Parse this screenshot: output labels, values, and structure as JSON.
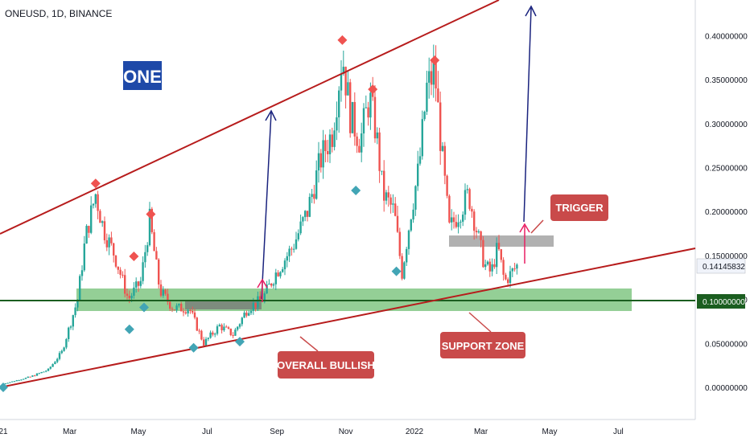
{
  "header": {
    "symbol_line": "ONEUSD, 1D, BINANCE"
  },
  "logo": {
    "text": "ONE",
    "bg": "#1e49a8",
    "fg": "#ffffff"
  },
  "colors": {
    "up": "#26a69a",
    "down": "#ef5350",
    "trendline": "#b71c1c",
    "support_zone": "#81c784",
    "support_line": "#1b5e20",
    "arrow_blue": "#1a237e",
    "arrow_pink": "#e91e63",
    "label_bg": "#c94a4a",
    "trigger_zone": "#9e9e9e",
    "marker_top": "#ef5350",
    "marker_bottom": "#42a5b5"
  },
  "chart_data": {
    "type": "candlestick",
    "symbol": "ONEUSD",
    "timeframe": "1D",
    "exchange": "BINANCE",
    "x_ticks": [
      "21",
      "Mar",
      "May",
      "Jul",
      "Sep",
      "Nov",
      "2022",
      "Mar",
      "May",
      "Jul"
    ],
    "y_ticks": [
      "0.40000000",
      "0.35000000",
      "0.30000000",
      "0.25000000",
      "0.20000000",
      "0.15000000",
      "0.10000000",
      "0.05000000",
      "0.00000000"
    ],
    "ylim": [
      -0.03,
      0.43
    ],
    "current_price": "0.14145832",
    "support_level": "0.10000000",
    "price_path": [
      [
        "2021-01-01",
        0.004
      ],
      [
        "2021-01-25",
        0.012
      ],
      [
        "2021-02-10",
        0.02
      ],
      [
        "2021-02-22",
        0.04
      ],
      [
        "2021-03-01",
        0.07
      ],
      [
        "2021-03-08",
        0.1
      ],
      [
        "2021-03-15",
        0.17
      ],
      [
        "2021-03-24",
        0.22
      ],
      [
        "2021-03-31",
        0.18
      ],
      [
        "2021-04-10",
        0.15
      ],
      [
        "2021-04-22",
        0.1
      ],
      [
        "2021-05-03",
        0.12
      ],
      [
        "2021-05-11",
        0.19
      ],
      [
        "2021-05-20",
        0.11
      ],
      [
        "2021-06-01",
        0.09
      ],
      [
        "2021-06-15",
        0.09
      ],
      [
        "2021-06-28",
        0.05
      ],
      [
        "2021-07-12",
        0.07
      ],
      [
        "2021-07-24",
        0.06
      ],
      [
        "2021-08-06",
        0.09
      ],
      [
        "2021-08-19",
        0.1
      ],
      [
        "2021-08-31",
        0.13
      ],
      [
        "2021-09-15",
        0.16
      ],
      [
        "2021-09-28",
        0.2
      ],
      [
        "2021-10-10",
        0.26
      ],
      [
        "2021-10-20",
        0.29
      ],
      [
        "2021-10-29",
        0.38
      ],
      [
        "2021-11-05",
        0.31
      ],
      [
        "2021-11-14",
        0.28
      ],
      [
        "2021-11-22",
        0.33
      ],
      [
        "2021-11-28",
        0.29
      ],
      [
        "2021-12-04",
        0.22
      ],
      [
        "2021-12-14",
        0.2
      ],
      [
        "2021-12-21",
        0.13
      ],
      [
        "2021-12-29",
        0.2
      ],
      [
        "2022-01-05",
        0.25
      ],
      [
        "2022-01-12",
        0.34
      ],
      [
        "2022-01-19",
        0.36
      ],
      [
        "2022-01-25",
        0.27
      ],
      [
        "2022-02-01",
        0.18
      ],
      [
        "2022-02-10",
        0.2
      ],
      [
        "2022-02-18",
        0.22
      ],
      [
        "2022-02-25",
        0.18
      ],
      [
        "2022-03-04",
        0.14
      ],
      [
        "2022-03-10",
        0.13
      ],
      [
        "2022-03-16",
        0.16
      ],
      [
        "2022-03-22",
        0.12
      ],
      [
        "2022-03-28",
        0.13
      ],
      [
        "2022-04-03",
        0.14
      ]
    ],
    "annotations": {
      "support_zone_label": "SUPPORT ZONE",
      "trend_label": "OVERALL BULLISH",
      "trigger_label": "TRIGGER"
    },
    "grid": false,
    "legend": "none"
  }
}
